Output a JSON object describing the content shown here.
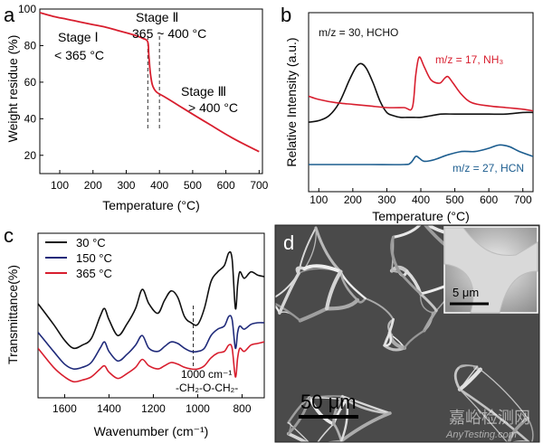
{
  "panels": {
    "a": {
      "letter": "a"
    },
    "b": {
      "letter": "b"
    },
    "c": {
      "letter": "c"
    },
    "d": {
      "letter": "d"
    }
  },
  "chart_data": [
    {
      "id": "a",
      "type": "line",
      "xlabel": "Temperature (°C)",
      "ylabel": "Weight residue (%)",
      "xlim": [
        40,
        710
      ],
      "ylim": [
        10,
        100
      ],
      "xticks": [
        100,
        200,
        300,
        400,
        500,
        600,
        700
      ],
      "yticks": [
        20,
        40,
        60,
        80,
        100
      ],
      "series": [
        {
          "name": "weight",
          "color": "#d81e2e",
          "x": [
            40,
            80,
            120,
            160,
            200,
            240,
            280,
            320,
            350,
            365,
            368,
            372,
            378,
            385,
            392,
            400,
            420,
            460,
            500,
            550,
            600,
            650,
            700
          ],
          "y": [
            98,
            96,
            94.5,
            93,
            91.5,
            90,
            88,
            86,
            84,
            82,
            75,
            66,
            59,
            56,
            54.5,
            53.5,
            51.5,
            47,
            42.5,
            37,
            31.5,
            26.5,
            22
          ]
        }
      ],
      "vlines": [
        365,
        400
      ],
      "annotations": {
        "stage1_title": "Stage Ⅰ",
        "stage1_range": "< 365 °C",
        "stage2_title": "Stage Ⅱ",
        "stage2_range": "365 ~ 400 °C",
        "stage3_title": "Stage Ⅲ",
        "stage3_range": "> 400 °C"
      }
    },
    {
      "id": "b",
      "type": "line",
      "xlabel": "Temperature (°C)",
      "ylabel": "Relative Intensity (a.u.)",
      "xlim": [
        70,
        730
      ],
      "ylim": [
        0,
        100
      ],
      "xticks": [
        100,
        200,
        300,
        400,
        500,
        600,
        700
      ],
      "series": [
        {
          "name": "m/z = 30, HCHO",
          "color": "#111111",
          "x": [
            70,
            100,
            130,
            160,
            190,
            210,
            225,
            240,
            260,
            280,
            300,
            320,
            340,
            360,
            380,
            400,
            430,
            460,
            500,
            550,
            600,
            650,
            700,
            730
          ],
          "y": [
            36,
            37,
            40,
            48,
            62,
            70,
            72,
            69,
            60,
            49,
            42,
            40,
            39,
            39,
            39,
            39,
            40,
            41,
            41,
            41,
            41,
            41,
            42,
            42
          ]
        },
        {
          "name": "m/z = 17, NH₃",
          "color": "#d81e2e",
          "x": [
            70,
            100,
            150,
            200,
            250,
            300,
            350,
            375,
            385,
            395,
            410,
            430,
            455,
            470,
            480,
            495,
            520,
            550,
            600,
            650,
            700,
            730
          ],
          "y": [
            52,
            50,
            48,
            47,
            46,
            45,
            45,
            45,
            65,
            76,
            70,
            62,
            60,
            63,
            64,
            60,
            53,
            48,
            46,
            45,
            44,
            43
          ]
        },
        {
          "name": "m/z = 27, HCN",
          "color": "#1c5d8f",
          "x": [
            70,
            150,
            250,
            350,
            370,
            385,
            395,
            410,
            440,
            480,
            520,
            560,
            600,
            630,
            660,
            690,
            730
          ],
          "y": [
            10,
            10,
            10,
            10,
            11,
            15,
            14,
            12,
            13,
            16,
            18,
            18,
            20,
            22,
            21,
            18,
            15
          ]
        }
      ],
      "labels": {
        "hcho": "m/z = 30, HCHO",
        "nh3": "m/z = 17, NH₃",
        "hcn": "m/z = 27, HCN"
      }
    },
    {
      "id": "c",
      "type": "line",
      "xlabel": "Wavenumber (cm⁻¹)",
      "ylabel": "Transmittance(%)",
      "xlim": [
        1720,
        700
      ],
      "ylim": [
        0,
        100
      ],
      "xticks": [
        1600,
        1400,
        1200,
        1000,
        800
      ],
      "vline": 1020,
      "annotation_line1": "1000 cm⁻¹",
      "annotation_line2": "-CH₂-O-CH₂-",
      "legend": [
        "30 °C",
        "150 °C",
        "365 °C"
      ],
      "series": [
        {
          "name": "30 °C",
          "color": "#111111",
          "x": [
            1720,
            1650,
            1600,
            1560,
            1520,
            1480,
            1440,
            1420,
            1400,
            1360,
            1320,
            1280,
            1250,
            1220,
            1180,
            1150,
            1120,
            1090,
            1060,
            1030,
            1000,
            970,
            940,
            910,
            880,
            860,
            845,
            830,
            820,
            810,
            790,
            760,
            730,
            700
          ],
          "y": [
            58,
            45,
            35,
            30,
            32,
            36,
            50,
            55,
            48,
            38,
            45,
            55,
            67,
            58,
            52,
            60,
            66,
            62,
            50,
            46,
            45,
            55,
            72,
            78,
            82,
            90,
            86,
            55,
            70,
            78,
            74,
            78,
            76,
            75
          ]
        },
        {
          "name": "150 °C",
          "color": "#1f2a7a",
          "x": [
            1720,
            1650,
            1600,
            1560,
            1520,
            1480,
            1440,
            1420,
            1400,
            1360,
            1320,
            1280,
            1250,
            1220,
            1180,
            1150,
            1120,
            1090,
            1060,
            1030,
            1000,
            970,
            940,
            910,
            880,
            860,
            845,
            830,
            820,
            810,
            790,
            760,
            730,
            700
          ],
          "y": [
            40,
            28,
            20,
            17,
            18,
            21,
            30,
            34,
            28,
            22,
            26,
            32,
            38,
            30,
            28,
            31,
            34,
            33,
            30,
            28,
            28,
            30,
            38,
            42,
            44,
            50,
            48,
            30,
            40,
            44,
            42,
            45,
            46,
            46
          ]
        },
        {
          "name": "365 °C",
          "color": "#d81e2e",
          "x": [
            1720,
            1650,
            1600,
            1560,
            1520,
            1480,
            1440,
            1420,
            1400,
            1360,
            1320,
            1280,
            1250,
            1220,
            1180,
            1150,
            1120,
            1090,
            1060,
            1030,
            1000,
            970,
            940,
            910,
            880,
            860,
            845,
            830,
            820,
            810,
            790,
            760,
            730,
            700
          ],
          "y": [
            30,
            18,
            12,
            9,
            10,
            12,
            17,
            19,
            15,
            11,
            14,
            18,
            23,
            19,
            17,
            19,
            21,
            20,
            18,
            17,
            17,
            19,
            24,
            27,
            28,
            32,
            30,
            12,
            24,
            30,
            28,
            32,
            33,
            34
          ]
        }
      ]
    }
  ],
  "micrograph": {
    "scale_main": "50 μm",
    "scale_inset": "5 μm",
    "watermark_cn": "嘉峪检测网",
    "watermark_en": "AnyTesting.com"
  }
}
